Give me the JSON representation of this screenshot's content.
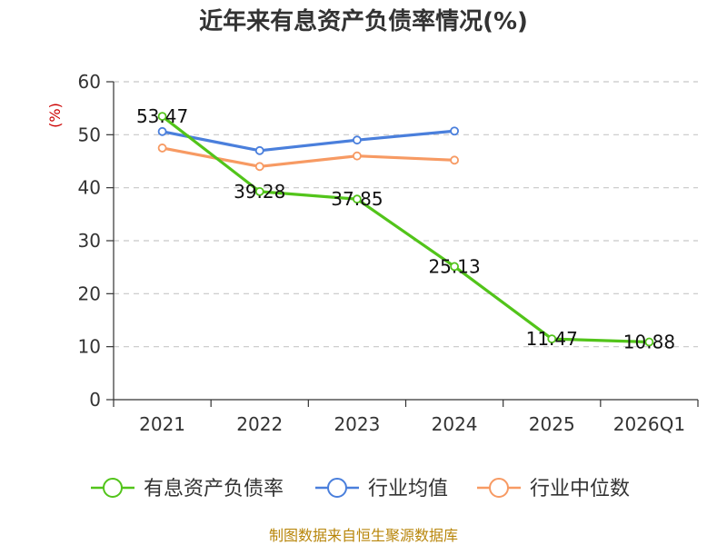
{
  "chart_data": {
    "type": "line",
    "title": "近年来有息资产负债率情况(%)",
    "ylabel": "(%)",
    "xlabel": "",
    "categories": [
      "2021",
      "2022",
      "2023",
      "2024",
      "2025",
      "2026Q1"
    ],
    "yticks": [
      "0",
      "10",
      "20",
      "30",
      "40",
      "50",
      "60"
    ],
    "ylim": [
      0,
      60
    ],
    "grid": true,
    "legend_position": "bottom",
    "series": [
      {
        "name": "有息资产负债率",
        "color": "#52c41a",
        "values": [
          53.47,
          39.28,
          37.85,
          25.13,
          11.47,
          10.88
        ],
        "labels": [
          "53.47",
          "39.28",
          "37.85",
          "25.13",
          "11.47",
          "10.88"
        ]
      },
      {
        "name": "行业均值",
        "color": "#4a7fdc",
        "values": [
          50.6,
          47.0,
          49.0,
          50.7,
          null,
          null
        ]
      },
      {
        "name": "行业中位数",
        "color": "#f79a63",
        "values": [
          47.5,
          44.0,
          46.0,
          45.2,
          null,
          null
        ]
      }
    ],
    "source": "制图数据来自恒生聚源数据库"
  }
}
